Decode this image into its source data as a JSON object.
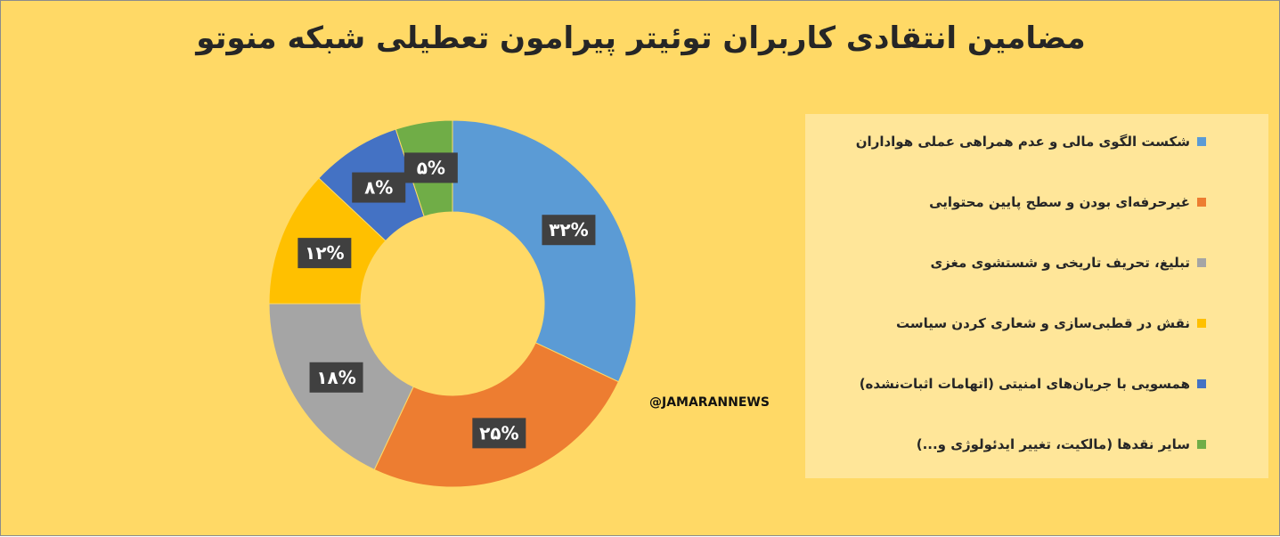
{
  "chart_data": {
    "type": "pie",
    "title": "مضامین انتقادی کاربران توئیتر پیرامون تعطیلی شبکه منوتو",
    "categories": [
      "شکست الگوی مالی و عدم همراهی عملی هواداران",
      "غیرحرفه‌ای بودن و سطح پایین محتوایی",
      "تبلیغ، تحریف تاریخی و شستشوی مغزی",
      "نقش در قطبی‌سازی و شعاری کردن سیاست",
      "همسویی با جریان‌های امنیتی (اتهامات اثبات‌نشده)",
      "سایر نقدها (مالکیت، تغییر ایدئولوژی و...)"
    ],
    "values": [
      32,
      25,
      18,
      12,
      8,
      5
    ],
    "data_labels": [
      "۳۲%",
      "۲۵%",
      "۱۸%",
      "۱۲%",
      "۸%",
      "۵%"
    ],
    "colors": [
      "#5B9BD5",
      "#ED7D31",
      "#A5A5A5",
      "#FFC000",
      "#4472C4",
      "#70AD47"
    ],
    "style": "donut",
    "legend_position": "right",
    "background_color": "#FFD966",
    "legend_background": "#FFE699"
  },
  "watermark": "@JAMARANNEWS"
}
